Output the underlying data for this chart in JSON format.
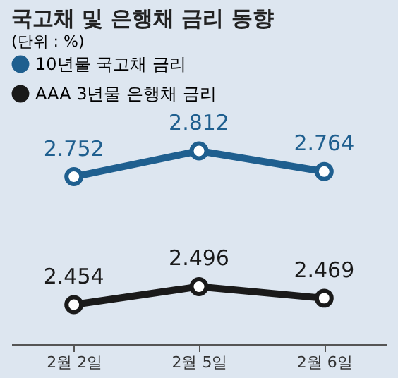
{
  "chart_data": {
    "type": "line",
    "title": "국고채 및 은행채 금리 동향",
    "subtitle": "(단위 : %)",
    "categories": [
      "2월 2일",
      "2월 5일",
      "2월 6일"
    ],
    "series": [
      {
        "name": "10년물 국고채 금리",
        "color": "#1f5f8f",
        "values": [
          2.752,
          2.812,
          2.764
        ]
      },
      {
        "name": "AAA 3년물 은행채 금리",
        "color": "#1a1a1a",
        "values": [
          2.454,
          2.496,
          2.469
        ]
      }
    ],
    "tick_labels": "x",
    "data_labels": true,
    "marker": "circle",
    "line_style": "solid",
    "legend": "top left",
    "grid": false
  }
}
